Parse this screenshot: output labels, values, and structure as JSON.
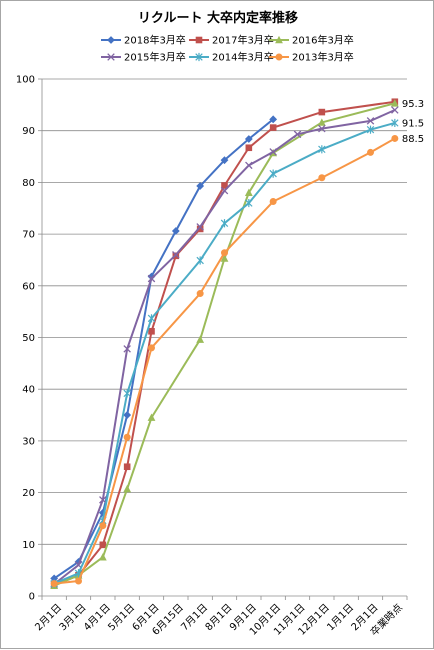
{
  "chart_data": {
    "type": "line",
    "title": "リクルート 大卒内定率推移",
    "xlabel": "",
    "ylabel": "",
    "ylim": [
      0,
      100
    ],
    "yticks": [
      0,
      10,
      20,
      30,
      40,
      50,
      60,
      70,
      80,
      90,
      100
    ],
    "grid": true,
    "legend": "top",
    "categories": [
      "2月1日",
      "3月1日",
      "4月1日",
      "5月1日",
      "6月1日",
      "6月15日",
      "7月1日",
      "8月1日",
      "9月1日",
      "10月1日",
      "11月1日",
      "12月1日",
      "1月1日",
      "2月1日",
      "卒業時点"
    ],
    "series": [
      {
        "name": "2018年3月卒",
        "color": "#4472c4",
        "marker": "diamond",
        "values": [
          3.4,
          6.6,
          16.1,
          35.0,
          61.8,
          70.6,
          79.3,
          84.3,
          88.4,
          92.2,
          null,
          null,
          null,
          null,
          null
        ]
      },
      {
        "name": "2017年3月卒",
        "color": "#c0504d",
        "marker": "square",
        "values": [
          2.1,
          4.0,
          9.9,
          25.0,
          51.2,
          65.8,
          71.0,
          79.4,
          86.7,
          90.6,
          null,
          93.6,
          null,
          null,
          95.6
        ]
      },
      {
        "name": "2016年3月卒",
        "color": "#9bbb59",
        "marker": "triangle",
        "values": [
          2.0,
          4.0,
          7.5,
          20.7,
          34.5,
          null,
          49.6,
          65.3,
          78.0,
          85.7,
          null,
          91.6,
          null,
          null,
          95.3
        ]
      },
      {
        "name": "2015年3月卒",
        "color": "#8064a2",
        "marker": "x",
        "values": [
          2.3,
          6.0,
          18.6,
          47.8,
          61.4,
          66.0,
          71.4,
          78.4,
          83.3,
          85.9,
          89.3,
          90.4,
          null,
          91.9,
          94.0
        ]
      },
      {
        "name": "2014年3月卒",
        "color": "#4bacc6",
        "marker": "star",
        "values": [
          2.4,
          4.4,
          14.6,
          39.2,
          53.7,
          null,
          64.9,
          72.1,
          76.0,
          81.7,
          null,
          86.4,
          null,
          90.2,
          91.5
        ]
      },
      {
        "name": "2013年3月卒",
        "color": "#f79646",
        "marker": "circle",
        "values": [
          2.4,
          2.9,
          13.6,
          30.7,
          48.0,
          null,
          58.5,
          66.4,
          null,
          76.3,
          null,
          80.9,
          null,
          85.8,
          88.5
        ]
      }
    ],
    "end_labels": [
      {
        "series": 2,
        "text": "95.3"
      },
      {
        "series": 4,
        "text": "91.5"
      },
      {
        "series": 5,
        "text": "88.5"
      }
    ]
  }
}
